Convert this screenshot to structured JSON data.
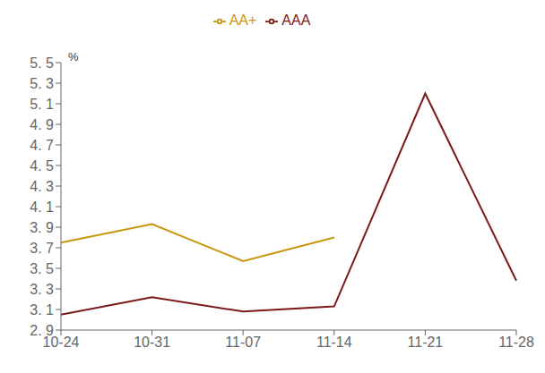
{
  "chart_data": {
    "type": "line",
    "ylabel": "%",
    "categories": [
      "10-24",
      "10-31",
      "11-07",
      "11-14",
      "11-21",
      "11-28"
    ],
    "series": [
      {
        "name": "AAA",
        "color": "#7B1A1A",
        "values": [
          3.05,
          3.22,
          3.08,
          3.13,
          5.2,
          3.38
        ]
      },
      {
        "name": "AA+",
        "color": "#C8960C",
        "values": [
          3.75,
          3.93,
          3.57,
          3.8,
          null,
          null
        ]
      }
    ],
    "ylim": [
      2.9,
      5.5
    ],
    "yticks": [
      {
        "value": 2.9,
        "label": "2. 9"
      },
      {
        "value": 3.1,
        "label": "3. 1"
      },
      {
        "value": 3.3,
        "label": "3. 3"
      },
      {
        "value": 3.5,
        "label": "3. 5"
      },
      {
        "value": 3.7,
        "label": "3. 7"
      },
      {
        "value": 3.9,
        "label": "3. 9"
      },
      {
        "value": 4.1,
        "label": "4. 1"
      },
      {
        "value": 4.3,
        "label": "4. 3"
      },
      {
        "value": 4.5,
        "label": "4. 5"
      },
      {
        "value": 4.7,
        "label": "4. 7"
      },
      {
        "value": 4.9,
        "label": "4. 9"
      },
      {
        "value": 5.1,
        "label": "5. 1"
      },
      {
        "value": 5.3,
        "label": "5. 3"
      },
      {
        "value": 5.5,
        "label": "5. 5"
      }
    ],
    "grid": false,
    "legend": "top"
  }
}
